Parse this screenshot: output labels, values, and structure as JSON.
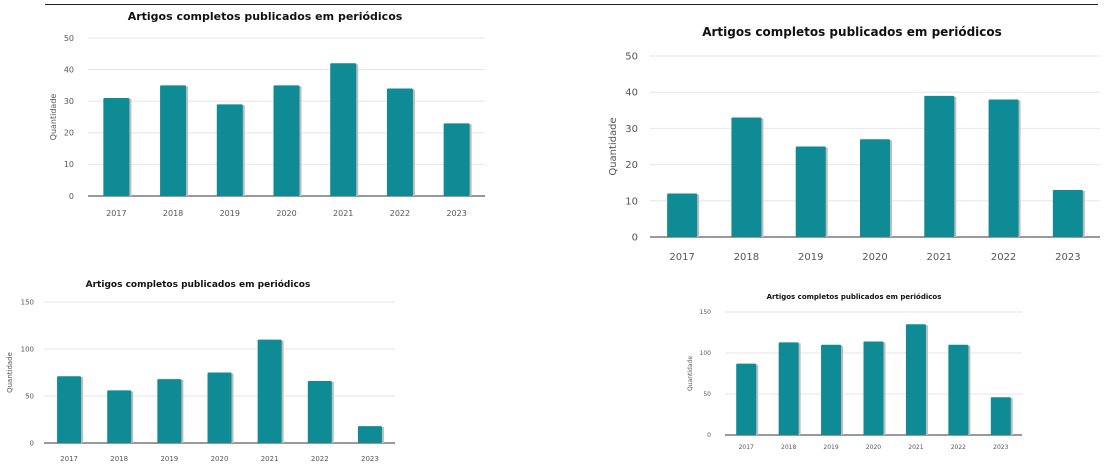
{
  "chart_data": [
    {
      "type": "bar",
      "title": "Artigos completos publicados em periódicos",
      "ylabel": "Quantidade",
      "xlabel": "",
      "categories": [
        "2017",
        "2018",
        "2019",
        "2020",
        "2021",
        "2022",
        "2023"
      ],
      "values": [
        31,
        35,
        29,
        35,
        42,
        34,
        23
      ],
      "ylim": [
        0,
        50
      ],
      "yticks": [
        0,
        10,
        20,
        30,
        40,
        50
      ],
      "grid": true,
      "color": "#0e8b94"
    },
    {
      "type": "bar",
      "title": "Artigos completos publicados em periódicos",
      "ylabel": "Quantidade",
      "xlabel": "",
      "categories": [
        "2017",
        "2018",
        "2019",
        "2020",
        "2021",
        "2022",
        "2023"
      ],
      "values": [
        12,
        33,
        25,
        27,
        39,
        38,
        13
      ],
      "ylim": [
        0,
        50
      ],
      "yticks": [
        0,
        10,
        20,
        30,
        40,
        50
      ],
      "grid": true,
      "color": "#0e8b94"
    },
    {
      "type": "bar",
      "title": "Artigos completos publicados em periódicos",
      "ylabel": "Quantidade",
      "xlabel": "",
      "categories": [
        "2017",
        "2018",
        "2019",
        "2020",
        "2021",
        "2022",
        "2023"
      ],
      "values": [
        71,
        56,
        68,
        75,
        110,
        66,
        18
      ],
      "ylim": [
        0,
        150
      ],
      "yticks": [
        0,
        50,
        100,
        150
      ],
      "grid": true,
      "color": "#0e8b94"
    },
    {
      "type": "bar",
      "title": "Artigos completos publicados em periódicos",
      "ylabel": "Quantidade",
      "xlabel": "",
      "categories": [
        "2017",
        "2018",
        "2019",
        "2020",
        "2021",
        "2022",
        "2023"
      ],
      "values": [
        87,
        113,
        110,
        114,
        135,
        110,
        46
      ],
      "ylim": [
        0,
        150
      ],
      "yticks": [
        0,
        50,
        100,
        150
      ],
      "grid": true,
      "color": "#0e8b94"
    }
  ]
}
